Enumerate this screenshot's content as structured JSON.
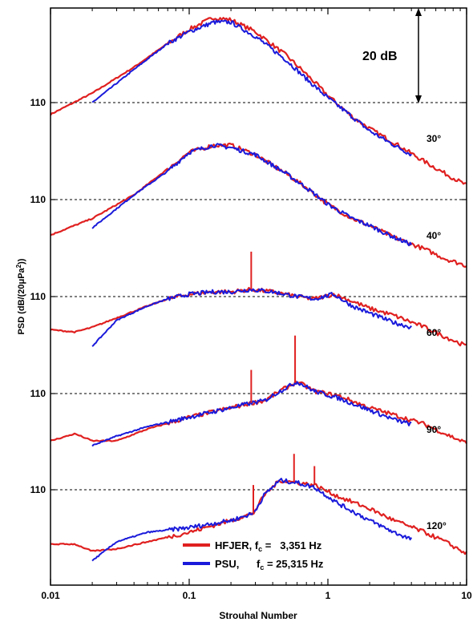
{
  "chart_data": {
    "type": "line",
    "xlabel": "Strouhal Number",
    "xscale": "log",
    "xlim": [
      0.01,
      10
    ],
    "x_ticks": [
      "0.01",
      "0.1",
      "1",
      "10"
    ],
    "ylabel_parts": {
      "pre": "PSD (dB/(20",
      "mu": "μ",
      "mid": "Pa",
      "sup": "2",
      "post": "))"
    },
    "reference_level_label": "110",
    "scale_bar_label": "20 dB",
    "colors": {
      "HFJER": "#e02020",
      "PSU": "#1a1adb"
    },
    "legend": {
      "position": "bottom-center",
      "entries": [
        {
          "name_parts": {
            "pre": "HFJER, f",
            "sub": "c",
            "post": " =   3,351 Hz"
          },
          "color": "#e02020"
        },
        {
          "name_parts": {
            "pre": "PSU,      f",
            "sub": "c",
            "post": " = 25,315 Hz"
          },
          "color": "#1a1adb"
        }
      ]
    },
    "panels": [
      {
        "angle_label": "30°",
        "ref_level_db": 110,
        "series": [
          {
            "name": "HFJER",
            "x": [
              0.01,
              0.02,
              0.04,
              0.07,
              0.1,
              0.15,
              0.2,
              0.3,
              0.5,
              0.7,
              1,
              1.5,
              2,
              3,
              5,
              7,
              10
            ],
            "y_rel_db": [
              -2.5,
              2,
              7.5,
              12.5,
              15.5,
              18,
              17.5,
              15,
              10,
              6,
              1.5,
              -3,
              -5.5,
              -8.5,
              -12.5,
              -15,
              -17.5
            ]
          },
          {
            "name": "PSU",
            "x": [
              0.02,
              0.04,
              0.07,
              0.1,
              0.15,
              0.2,
              0.3,
              0.5,
              0.7,
              1,
              1.5,
              2,
              3,
              4
            ],
            "y_rel_db": [
              0,
              7,
              12.5,
              15,
              17,
              17,
              14,
              9,
              5,
              1,
              -3,
              -6,
              -9,
              -11
            ]
          }
        ]
      },
      {
        "angle_label": "40°",
        "ref_level_db": 110,
        "series": [
          {
            "name": "HFJER",
            "x": [
              0.01,
              0.02,
              0.04,
              0.07,
              0.1,
              0.15,
              0.2,
              0.3,
              0.5,
              0.7,
              1,
              1.5,
              2,
              3,
              5,
              7,
              10
            ],
            "y_rel_db": [
              -7.5,
              -4,
              1,
              6.5,
              10,
              11.5,
              11.5,
              9.5,
              5.5,
              2.5,
              -1,
              -4,
              -5.5,
              -8,
              -10.5,
              -12.5,
              -14
            ]
          },
          {
            "name": "PSU",
            "x": [
              0.02,
              0.04,
              0.07,
              0.1,
              0.15,
              0.2,
              0.3,
              0.5,
              0.7,
              1,
              1.5,
              2,
              3,
              4
            ],
            "y_rel_db": [
              -6,
              1,
              6,
              10,
              11.5,
              11,
              9.5,
              5.5,
              2.5,
              -1,
              -4,
              -5.5,
              -8,
              -9.5
            ]
          }
        ]
      },
      {
        "angle_label": "60°",
        "ref_level_db": 110,
        "series": [
          {
            "name": "HFJER",
            "x": [
              0.01,
              0.015,
              0.02,
              0.03,
              0.05,
              0.07,
              0.1,
              0.15,
              0.2,
              0.28,
              0.4,
              0.6,
              0.8,
              1.1,
              1.5,
              2,
              3,
              5,
              7,
              10
            ],
            "y_rel_db": [
              -7,
              -7.5,
              -6.5,
              -4.5,
              -2,
              -0.5,
              0.5,
              1,
              1,
              1.5,
              1,
              0,
              -0.5,
              0.5,
              -1,
              -2.5,
              -4,
              -6.5,
              -8.5,
              -10.5
            ]
          },
          {
            "name": "PSU",
            "x": [
              0.02,
              0.03,
              0.05,
              0.07,
              0.1,
              0.15,
              0.2,
              0.28,
              0.4,
              0.6,
              0.8,
              1.1,
              1.5,
              2,
              3,
              4
            ],
            "y_rel_db": [
              -10.5,
              -5,
              -2,
              -0.5,
              0.5,
              1,
              1,
              1.5,
              1,
              0,
              -0.5,
              0.5,
              -2,
              -3.5,
              -5.5,
              -6.5
            ]
          }
        ]
      },
      {
        "angle_label": "90°",
        "ref_level_db": 110,
        "series": [
          {
            "name": "HFJER",
            "x": [
              0.01,
              0.015,
              0.02,
              0.03,
              0.05,
              0.1,
              0.2,
              0.28,
              0.35,
              0.45,
              0.6,
              0.8,
              1.2,
              2,
              3,
              5,
              7,
              10
            ],
            "y_rel_db": [
              -10,
              -8.5,
              -10,
              -10,
              -7.5,
              -5,
              -3,
              -2,
              -1.5,
              0.5,
              2.5,
              0.5,
              -0.5,
              -3,
              -4.5,
              -6.5,
              -8.5,
              -10.5
            ]
          },
          {
            "name": "PSU",
            "x": [
              0.02,
              0.03,
              0.05,
              0.1,
              0.2,
              0.28,
              0.35,
              0.45,
              0.6,
              0.8,
              1.2,
              2,
              3,
              4
            ],
            "y_rel_db": [
              -11,
              -9,
              -7,
              -5,
              -3,
              -2,
              -1.5,
              0.5,
              2.5,
              0.5,
              -1,
              -3.5,
              -5.5,
              -6.5
            ]
          }
        ]
      },
      {
        "angle_label": "120°",
        "ref_level_db": 110,
        "series": [
          {
            "name": "HFJER",
            "x": [
              0.01,
              0.015,
              0.02,
              0.03,
              0.05,
              0.1,
              0.2,
              0.29,
              0.35,
              0.45,
              0.6,
              0.8,
              1.2,
              2,
              3,
              5,
              7,
              10
            ],
            "y_rel_db": [
              -11.5,
              -11.5,
              -13,
              -12.5,
              -11,
              -9,
              -6.5,
              -5,
              -1,
              2,
              1.5,
              1,
              -1.5,
              -4,
              -6.5,
              -9,
              -11,
              -13.5
            ]
          },
          {
            "name": "PSU",
            "x": [
              0.02,
              0.03,
              0.05,
              0.1,
              0.2,
              0.29,
              0.35,
              0.45,
              0.6,
              0.8,
              1.2,
              2,
              3,
              4
            ],
            "y_rel_db": [
              -15,
              -11,
              -9,
              -8,
              -6.5,
              -5,
              -1,
              2,
              1.5,
              0.5,
              -3,
              -6.5,
              -9,
              -10.5
            ]
          }
        ]
      }
    ]
  }
}
